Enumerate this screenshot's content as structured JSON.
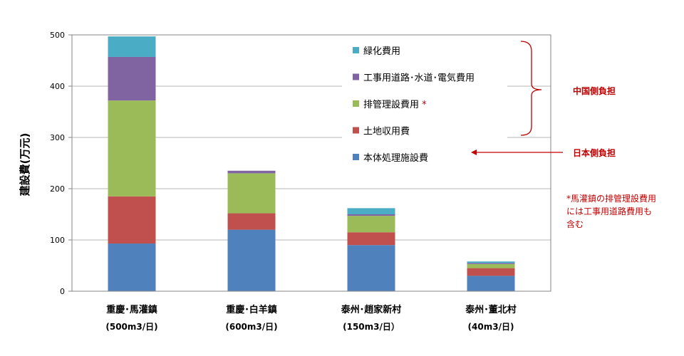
{
  "chart_data": {
    "type": "bar",
    "stacked": true,
    "ylabel": "建設費(万元)",
    "ylim": [
      0,
      500
    ],
    "yticks": [
      0,
      100,
      200,
      300,
      400,
      500
    ],
    "grid": true,
    "categories": [
      {
        "name": "重慶･馬灌鎮",
        "capacity": "(500m3/日)"
      },
      {
        "name": "重慶･白羊鎮",
        "capacity": "(600m3/日)"
      },
      {
        "name": "泰州･趙家新村",
        "capacity": "(150m3/日）"
      },
      {
        "name": "泰州･董北村",
        "capacity": "(40m3/日)"
      }
    ],
    "series": [
      {
        "name": "本体処理施設費",
        "color": "#4f81bd",
        "values": [
          93,
          120,
          90,
          30
        ]
      },
      {
        "name": "土地収用費",
        "color": "#c0504d",
        "values": [
          92,
          32,
          25,
          15
        ]
      },
      {
        "name": "排管理設費用",
        "asterisk": " *",
        "color": "#9bbb59",
        "values": [
          187,
          78,
          32,
          8
        ]
      },
      {
        "name": "工事用道路･水道･電気費用",
        "color": "#8064a2",
        "values": [
          85,
          5,
          3,
          2
        ]
      },
      {
        "name": "緑化費用",
        "color": "#4bacc6",
        "values": [
          40,
          0,
          12,
          3
        ]
      }
    ],
    "legend_position": "top-right"
  },
  "annotations": {
    "china_label": "中国側負担",
    "japan_label": "日本側負担",
    "note_lines": [
      "*馬灌鎮の排管理設費用",
      "には工事用道路費用も",
      "含む"
    ],
    "accent_color": "#c00000"
  }
}
